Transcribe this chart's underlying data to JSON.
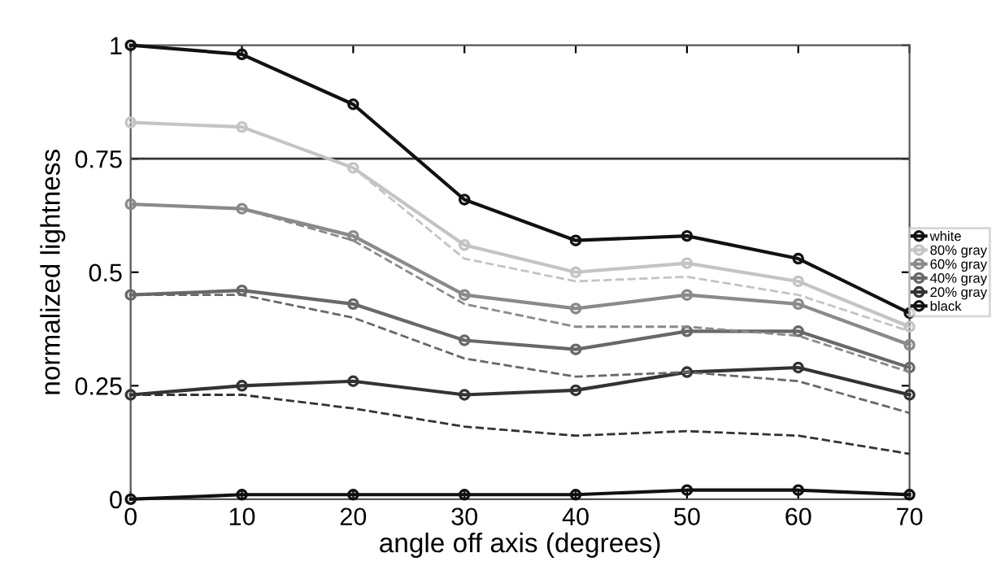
{
  "chart_data": {
    "type": "line",
    "xlabel": "angle off axis (degrees)",
    "ylabel": "normalized lightness",
    "x": [
      0,
      10,
      20,
      30,
      40,
      50,
      60,
      70
    ],
    "xlim": [
      0,
      70
    ],
    "xticks": [
      0,
      10,
      20,
      30,
      40,
      50,
      60,
      70
    ],
    "ylim": [
      0,
      1
    ],
    "yticks": [
      0,
      0.25,
      0.5,
      0.75,
      1
    ],
    "grid": false,
    "legend": "right",
    "marker": "circle",
    "ref_lines": [
      {
        "axis": "y",
        "value": 0.75,
        "color": "#333333",
        "line_style": "solid"
      }
    ],
    "series": [
      {
        "name": "white",
        "color": "#111111",
        "values": [
          1.0,
          0.98,
          0.87,
          0.66,
          0.57,
          0.58,
          0.53,
          0.41
        ]
      },
      {
        "name": "80% gray",
        "color": "#c4c4c4",
        "values": [
          0.83,
          0.82,
          0.73,
          0.56,
          0.5,
          0.52,
          0.48,
          0.38
        ]
      },
      {
        "name": "60% gray",
        "color": "#8a8a8a",
        "values": [
          0.65,
          0.64,
          0.58,
          0.45,
          0.42,
          0.45,
          0.43,
          0.34
        ]
      },
      {
        "name": "40% gray",
        "color": "#686868",
        "values": [
          0.45,
          0.46,
          0.43,
          0.35,
          0.33,
          0.37,
          0.37,
          0.29
        ]
      },
      {
        "name": "20% gray",
        "color": "#333333",
        "values": [
          0.23,
          0.25,
          0.26,
          0.23,
          0.24,
          0.28,
          0.29,
          0.23
        ]
      },
      {
        "name": "black",
        "color": "#111111",
        "values": [
          0.0,
          0.01,
          0.01,
          0.01,
          0.01,
          0.02,
          0.02,
          0.01
        ]
      },
      {
        "color": "#c4c4c4",
        "line_style": "dashed",
        "marker": "none",
        "values": [
          0.83,
          0.82,
          0.73,
          0.53,
          0.48,
          0.49,
          0.45,
          0.37
        ]
      },
      {
        "color": "#8a8a8a",
        "line_style": "dashed",
        "marker": "none",
        "values": [
          0.65,
          0.64,
          0.57,
          0.43,
          0.38,
          0.38,
          0.36,
          0.28
        ]
      },
      {
        "color": "#686868",
        "line_style": "dashed",
        "marker": "none",
        "values": [
          0.45,
          0.45,
          0.4,
          0.31,
          0.27,
          0.28,
          0.26,
          0.19
        ]
      },
      {
        "color": "#333333",
        "line_style": "dashed",
        "marker": "none",
        "values": [
          0.23,
          0.23,
          0.2,
          0.16,
          0.14,
          0.15,
          0.14,
          0.1
        ]
      }
    ]
  }
}
